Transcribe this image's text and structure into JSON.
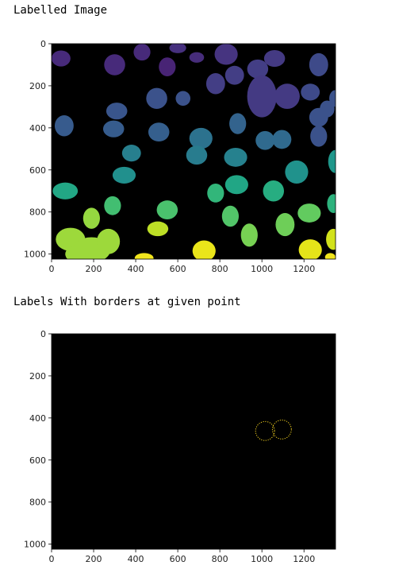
{
  "captions": {
    "labelled": "Labelled Image",
    "borders": "Labels With borders at given point"
  },
  "colors": {
    "background": "#440154",
    "border_outline": "#f5d320"
  },
  "chart_data": [
    {
      "type": "heatmap",
      "title": "",
      "xlabel": "",
      "ylabel": "",
      "xlim": [
        0,
        1350
      ],
      "ylim": [
        1024,
        0
      ],
      "xticks": [
        "0",
        "200",
        "400",
        "600",
        "800",
        "1000",
        "1200"
      ],
      "yticks": [
        "0",
        "200",
        "400",
        "600",
        "800",
        "1000"
      ],
      "colormap": "viridis",
      "blobs": [
        {
          "x": 45,
          "y": 70,
          "rx": 45,
          "ry": 38,
          "c": "#472a7a"
        },
        {
          "x": 300,
          "y": 100,
          "rx": 50,
          "ry": 50,
          "c": "#472a7a"
        },
        {
          "x": 430,
          "y": 40,
          "rx": 40,
          "ry": 40,
          "c": "#472a7a"
        },
        {
          "x": 600,
          "y": 20,
          "rx": 40,
          "ry": 25,
          "c": "#46307e"
        },
        {
          "x": 690,
          "y": 65,
          "rx": 35,
          "ry": 25,
          "c": "#472d7b"
        },
        {
          "x": 550,
          "y": 110,
          "rx": 40,
          "ry": 45,
          "c": "#482475"
        },
        {
          "x": 830,
          "y": 50,
          "rx": 55,
          "ry": 50,
          "c": "#463480"
        },
        {
          "x": 870,
          "y": 150,
          "rx": 45,
          "ry": 45,
          "c": "#433e85"
        },
        {
          "x": 780,
          "y": 190,
          "rx": 45,
          "ry": 50,
          "c": "#433e85"
        },
        {
          "x": 980,
          "y": 120,
          "rx": 50,
          "ry": 45,
          "c": "#433e85"
        },
        {
          "x": 1060,
          "y": 70,
          "rx": 50,
          "ry": 40,
          "c": "#443a83"
        },
        {
          "x": 1000,
          "y": 250,
          "rx": 70,
          "ry": 100,
          "c": "#443a83"
        },
        {
          "x": 1120,
          "y": 250,
          "rx": 60,
          "ry": 60,
          "c": "#443a83"
        },
        {
          "x": 1230,
          "y": 230,
          "rx": 45,
          "ry": 40,
          "c": "#3e4a89"
        },
        {
          "x": 1270,
          "y": 100,
          "rx": 45,
          "ry": 55,
          "c": "#3e4a89"
        },
        {
          "x": 1310,
          "y": 310,
          "rx": 35,
          "ry": 40,
          "c": "#3b528b"
        },
        {
          "x": 1350,
          "y": 260,
          "rx": 30,
          "ry": 40,
          "c": "#3b528b"
        },
        {
          "x": 1270,
          "y": 350,
          "rx": 45,
          "ry": 45,
          "c": "#3b528b"
        },
        {
          "x": 1270,
          "y": 440,
          "rx": 40,
          "ry": 50,
          "c": "#3b528b"
        },
        {
          "x": 500,
          "y": 260,
          "rx": 50,
          "ry": 50,
          "c": "#3b528b"
        },
        {
          "x": 625,
          "y": 260,
          "rx": 35,
          "ry": 35,
          "c": "#3b528b"
        },
        {
          "x": 310,
          "y": 320,
          "rx": 50,
          "ry": 40,
          "c": "#39558c"
        },
        {
          "x": 60,
          "y": 390,
          "rx": 45,
          "ry": 50,
          "c": "#375b8d"
        },
        {
          "x": 295,
          "y": 405,
          "rx": 50,
          "ry": 40,
          "c": "#365c8d"
        },
        {
          "x": 510,
          "y": 420,
          "rx": 50,
          "ry": 45,
          "c": "#355f8d"
        },
        {
          "x": 885,
          "y": 380,
          "rx": 40,
          "ry": 50,
          "c": "#33638d"
        },
        {
          "x": 1015,
          "y": 460,
          "rx": 45,
          "ry": 45,
          "c": "#306a8e"
        },
        {
          "x": 1095,
          "y": 455,
          "rx": 45,
          "ry": 45,
          "c": "#306a8e"
        },
        {
          "x": 710,
          "y": 450,
          "rx": 55,
          "ry": 50,
          "c": "#2c728e"
        },
        {
          "x": 380,
          "y": 520,
          "rx": 45,
          "ry": 40,
          "c": "#277f8e"
        },
        {
          "x": 690,
          "y": 530,
          "rx": 50,
          "ry": 45,
          "c": "#287c8e"
        },
        {
          "x": 875,
          "y": 540,
          "rx": 55,
          "ry": 45,
          "c": "#26818e"
        },
        {
          "x": 345,
          "y": 625,
          "rx": 55,
          "ry": 40,
          "c": "#21908d"
        },
        {
          "x": 1165,
          "y": 610,
          "rx": 55,
          "ry": 55,
          "c": "#20928c"
        },
        {
          "x": 1350,
          "y": 560,
          "rx": 35,
          "ry": 55,
          "c": "#1f978b"
        },
        {
          "x": 65,
          "y": 700,
          "rx": 60,
          "ry": 40,
          "c": "#22a785"
        },
        {
          "x": 880,
          "y": 670,
          "rx": 55,
          "ry": 45,
          "c": "#21a685"
        },
        {
          "x": 1055,
          "y": 700,
          "rx": 50,
          "ry": 50,
          "c": "#27ad81"
        },
        {
          "x": 1340,
          "y": 760,
          "rx": 30,
          "ry": 45,
          "c": "#2db27d"
        },
        {
          "x": 780,
          "y": 710,
          "rx": 40,
          "ry": 45,
          "c": "#32b67a"
        },
        {
          "x": 290,
          "y": 770,
          "rx": 40,
          "ry": 45,
          "c": "#42be71"
        },
        {
          "x": 550,
          "y": 790,
          "rx": 50,
          "ry": 45,
          "c": "#4ac16d"
        },
        {
          "x": 850,
          "y": 820,
          "rx": 40,
          "ry": 50,
          "c": "#52c569"
        },
        {
          "x": 1225,
          "y": 805,
          "rx": 55,
          "ry": 45,
          "c": "#62cb5f"
        },
        {
          "x": 1110,
          "y": 860,
          "rx": 45,
          "ry": 55,
          "c": "#6ece58"
        },
        {
          "x": 940,
          "y": 910,
          "rx": 40,
          "ry": 55,
          "c": "#77d153"
        },
        {
          "x": 190,
          "y": 830,
          "rx": 40,
          "ry": 50,
          "c": "#95d840"
        },
        {
          "x": 90,
          "y": 930,
          "rx": 70,
          "ry": 55,
          "c": "#9dd93b"
        },
        {
          "x": 190,
          "y": 980,
          "rx": 90,
          "ry": 60,
          "c": "#9dd93b"
        },
        {
          "x": 270,
          "y": 940,
          "rx": 55,
          "ry": 60,
          "c": "#9dd93b"
        },
        {
          "x": 120,
          "y": 1000,
          "rx": 55,
          "ry": 40,
          "c": "#9dd93b"
        },
        {
          "x": 505,
          "y": 880,
          "rx": 50,
          "ry": 35,
          "c": "#bddf26"
        },
        {
          "x": 1340,
          "y": 930,
          "rx": 35,
          "ry": 50,
          "c": "#d2e21b"
        },
        {
          "x": 1230,
          "y": 980,
          "rx": 55,
          "ry": 50,
          "c": "#e5e419"
        },
        {
          "x": 725,
          "y": 985,
          "rx": 55,
          "ry": 50,
          "c": "#eae51a"
        },
        {
          "x": 440,
          "y": 1020,
          "rx": 45,
          "ry": 25,
          "c": "#f1e51d"
        },
        {
          "x": 1325,
          "y": 1015,
          "rx": 25,
          "ry": 20,
          "c": "#f1e51d"
        }
      ]
    },
    {
      "type": "heatmap",
      "title": "",
      "xlabel": "",
      "ylabel": "",
      "xlim": [
        0,
        1350
      ],
      "ylim": [
        1024,
        0
      ],
      "xticks": [
        "0",
        "200",
        "400",
        "600",
        "800",
        "1000",
        "1200"
      ],
      "yticks": [
        "0",
        "200",
        "400",
        "600",
        "800",
        "1000"
      ],
      "colormap": "viridis",
      "outlines": [
        {
          "x": 1015,
          "y": 462,
          "rx": 45,
          "ry": 45
        },
        {
          "x": 1095,
          "y": 455,
          "rx": 45,
          "ry": 45
        }
      ]
    }
  ]
}
